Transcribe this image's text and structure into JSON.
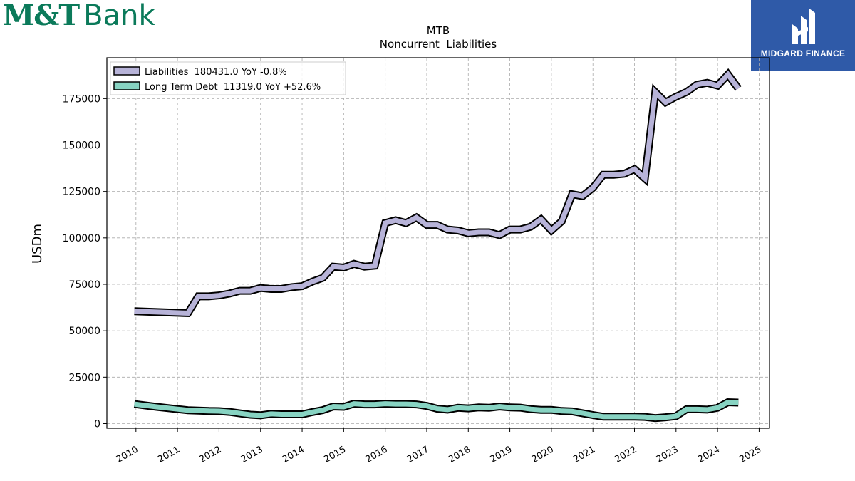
{
  "brand": {
    "name_part1": "M&T",
    "name_part2": "Bank",
    "color": "#0b7a5a"
  },
  "badge": {
    "text": "MIDGARD FINANCE",
    "background": "#2f5aa8",
    "icon": "midgard-mark-icon"
  },
  "chart_data": {
    "type": "line",
    "title": "MTB",
    "subtitle": "Noncurrent  Liabilities",
    "ylabel": "USDm",
    "xlabel": "",
    "xlim": [
      2009.3,
      2025.25
    ],
    "ylim": [
      -2500,
      197000
    ],
    "grid": true,
    "legend_position": "top-left",
    "x_ticks": [
      2010,
      2011,
      2012,
      2013,
      2014,
      2015,
      2016,
      2017,
      2018,
      2019,
      2020,
      2021,
      2022,
      2023,
      2024,
      2025
    ],
    "y_ticks": [
      0,
      25000,
      50000,
      75000,
      100000,
      125000,
      150000,
      175000
    ],
    "series": [
      {
        "name": "Liabilities  180431.0 YoY -0.8%",
        "color": "#b7b3d8",
        "points": [
          [
            2009.96,
            60500
          ],
          [
            2011.25,
            59500
          ],
          [
            2011.5,
            68500
          ],
          [
            2011.75,
            68500
          ],
          [
            2012.0,
            69000
          ],
          [
            2012.25,
            70000
          ],
          [
            2012.5,
            71500
          ],
          [
            2012.75,
            71500
          ],
          [
            2013.0,
            73000
          ],
          [
            2013.25,
            72500
          ],
          [
            2013.5,
            72500
          ],
          [
            2013.75,
            73500
          ],
          [
            2014.0,
            74000
          ],
          [
            2014.25,
            76500
          ],
          [
            2014.5,
            78500
          ],
          [
            2014.75,
            84500
          ],
          [
            2015.0,
            84000
          ],
          [
            2015.25,
            86000
          ],
          [
            2015.5,
            84500
          ],
          [
            2015.75,
            85000
          ],
          [
            2016.0,
            108000
          ],
          [
            2016.25,
            109500
          ],
          [
            2016.5,
            108000
          ],
          [
            2016.75,
            111000
          ],
          [
            2017.0,
            107000
          ],
          [
            2017.25,
            107000
          ],
          [
            2017.5,
            104500
          ],
          [
            2017.75,
            104000
          ],
          [
            2018.0,
            102500
          ],
          [
            2018.25,
            103000
          ],
          [
            2018.5,
            103000
          ],
          [
            2018.75,
            101500
          ],
          [
            2019.0,
            104500
          ],
          [
            2019.25,
            104500
          ],
          [
            2019.5,
            106000
          ],
          [
            2019.75,
            110000
          ],
          [
            2020.0,
            104000
          ],
          [
            2020.25,
            109000
          ],
          [
            2020.5,
            123500
          ],
          [
            2020.75,
            122500
          ],
          [
            2021.0,
            127000
          ],
          [
            2021.25,
            134000
          ],
          [
            2021.5,
            134000
          ],
          [
            2021.75,
            134500
          ],
          [
            2022.0,
            137000
          ],
          [
            2022.25,
            132000
          ],
          [
            2022.5,
            178500
          ],
          [
            2022.75,
            173000
          ],
          [
            2023.0,
            176000
          ],
          [
            2023.25,
            178500
          ],
          [
            2023.5,
            182500
          ],
          [
            2023.75,
            183500
          ],
          [
            2024.0,
            182000
          ],
          [
            2024.25,
            188000
          ],
          [
            2024.5,
            180431
          ]
        ]
      },
      {
        "name": "Long Term Debt  11319.0 YoY +52.6%",
        "color": "#87d3c2",
        "points": [
          [
            2009.96,
            10500
          ],
          [
            2010.5,
            9000
          ],
          [
            2011.0,
            7800
          ],
          [
            2011.25,
            7200
          ],
          [
            2011.5,
            7000
          ],
          [
            2011.75,
            6800
          ],
          [
            2012.0,
            6700
          ],
          [
            2012.25,
            6300
          ],
          [
            2012.5,
            5500
          ],
          [
            2012.75,
            4800
          ],
          [
            2013.0,
            4500
          ],
          [
            2013.25,
            5200
          ],
          [
            2013.5,
            5000
          ],
          [
            2013.75,
            5000
          ],
          [
            2014.0,
            5000
          ],
          [
            2014.25,
            6200
          ],
          [
            2014.5,
            7300
          ],
          [
            2014.75,
            9200
          ],
          [
            2015.0,
            9000
          ],
          [
            2015.25,
            10700
          ],
          [
            2015.5,
            10300
          ],
          [
            2015.75,
            10300
          ],
          [
            2016.0,
            10700
          ],
          [
            2016.25,
            10500
          ],
          [
            2016.5,
            10500
          ],
          [
            2016.75,
            10300
          ],
          [
            2017.0,
            9500
          ],
          [
            2017.25,
            8000
          ],
          [
            2017.5,
            7500
          ],
          [
            2017.75,
            8500
          ],
          [
            2018.0,
            8200
          ],
          [
            2018.25,
            8700
          ],
          [
            2018.5,
            8500
          ],
          [
            2018.75,
            9200
          ],
          [
            2019.0,
            8700
          ],
          [
            2019.25,
            8600
          ],
          [
            2019.5,
            7800
          ],
          [
            2019.75,
            7400
          ],
          [
            2020.0,
            7400
          ],
          [
            2020.25,
            6800
          ],
          [
            2020.5,
            6600
          ],
          [
            2020.75,
            5600
          ],
          [
            2021.0,
            4600
          ],
          [
            2021.25,
            3700
          ],
          [
            2021.5,
            3700
          ],
          [
            2021.75,
            3700
          ],
          [
            2022.0,
            3700
          ],
          [
            2022.25,
            3600
          ],
          [
            2022.5,
            3000
          ],
          [
            2022.75,
            3400
          ],
          [
            2023.0,
            4000
          ],
          [
            2023.25,
            7700
          ],
          [
            2023.5,
            7700
          ],
          [
            2023.75,
            7500
          ],
          [
            2024.0,
            8500
          ],
          [
            2024.25,
            11500
          ],
          [
            2024.5,
            11319
          ]
        ]
      }
    ]
  }
}
